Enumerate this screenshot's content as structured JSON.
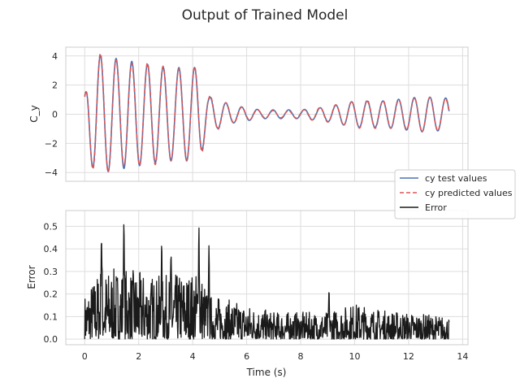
{
  "chart_data": {
    "title": "Output of Trained Model",
    "type": "line",
    "legend": {
      "placement": "right",
      "entries": [
        {
          "label": "cy test values",
          "color": "#4c72b0",
          "style": "solid"
        },
        {
          "label": "cy predicted values",
          "color": "#dd5555",
          "style": "dashed"
        },
        {
          "label": "Error",
          "color": "#1a1a1a",
          "style": "solid"
        }
      ]
    },
    "xlabel": "Time (s)",
    "xlim": [
      -0.7,
      14.2
    ],
    "xticks": [
      0,
      2,
      4,
      6,
      8,
      10,
      12,
      14
    ],
    "grid": true,
    "panels": [
      {
        "ylabel": "C_y",
        "ylim": [
          -4.6,
          4.6
        ],
        "yticks": [
          -4,
          -2,
          0,
          2,
          4
        ],
        "series": [
          {
            "name": "cy test values",
            "color": "#4c72b0",
            "style": "solid"
          },
          {
            "name": "cy predicted values",
            "color": "#dd5555",
            "style": "dashed"
          }
        ],
        "signal": {
          "t_end": 13.5,
          "frequency_hz": 1.72,
          "amplitude_envelope": [
            [
              0.0,
              1.2
            ],
            [
              0.15,
              3.0
            ],
            [
              0.4,
              4.1
            ],
            [
              1.5,
              3.7
            ],
            [
              3.0,
              3.2
            ],
            [
              4.2,
              3.2
            ],
            [
              4.6,
              1.2
            ],
            [
              5.5,
              0.6
            ],
            [
              6.5,
              0.3
            ],
            [
              8.0,
              0.3
            ],
            [
              9.0,
              0.5
            ],
            [
              10.0,
              0.9
            ],
            [
              11.0,
              0.9
            ],
            [
              12.5,
              1.2
            ],
            [
              13.5,
              1.1
            ]
          ]
        }
      },
      {
        "ylabel": "Error",
        "ylim": [
          -0.025,
          0.57
        ],
        "yticks": [
          0.0,
          0.1,
          0.2,
          0.3,
          0.4,
          0.5
        ],
        "series": [
          {
            "name": "Error",
            "color": "#1a1a1a",
            "style": "solid"
          }
        ],
        "error_envelope": [
          [
            0.0,
            0.2
          ],
          [
            0.5,
            0.3
          ],
          [
            1.4,
            0.32
          ],
          [
            2.6,
            0.28
          ],
          [
            4.3,
            0.3
          ],
          [
            4.6,
            0.2
          ],
          [
            5.5,
            0.17
          ],
          [
            7.0,
            0.12
          ],
          [
            9.0,
            0.12
          ],
          [
            10.0,
            0.16
          ],
          [
            11.0,
            0.13
          ],
          [
            13.5,
            0.1
          ]
        ],
        "spikes": [
          [
            0.62,
            0.5
          ],
          [
            1.45,
            0.535
          ],
          [
            2.85,
            0.43
          ],
          [
            3.2,
            0.38
          ],
          [
            4.23,
            0.54
          ],
          [
            4.6,
            0.43
          ],
          [
            9.05,
            0.23
          ]
        ]
      }
    ]
  }
}
